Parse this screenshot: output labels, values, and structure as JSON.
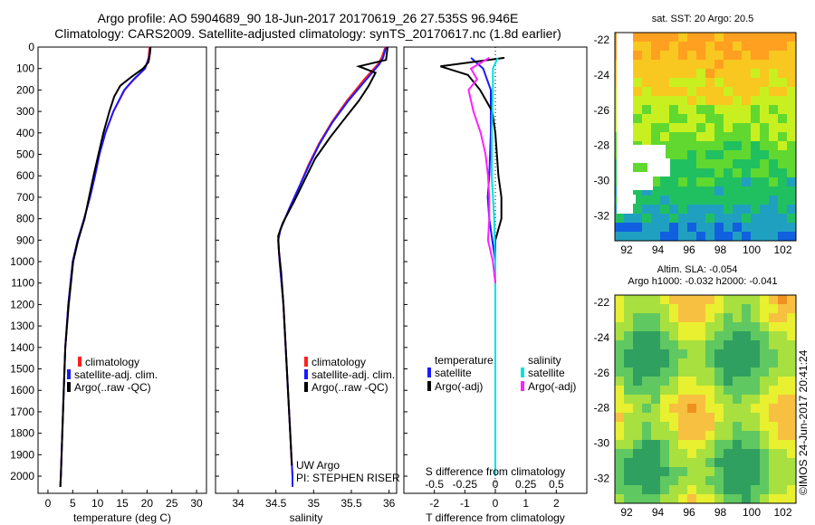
{
  "header": {
    "line1": "Argo profile: AO 5904689_90 18-Jun-2017 20170619_26 27.535S 96.946E",
    "line2": "Climatology: CARS2009. Satellite-adjusted climatology: synTS_20170617.nc (1.8d earlier)"
  },
  "colors": {
    "climatology": "#ff2020",
    "satellite": "#1a1aff",
    "argo": "#000000",
    "salinity_satellite": "#00e0e0",
    "salinity_argo": "#ff20ff"
  },
  "depth_axis": {
    "ticks": [
      0,
      100,
      200,
      300,
      400,
      500,
      600,
      700,
      800,
      900,
      1000,
      1100,
      1200,
      1300,
      1400,
      1500,
      1600,
      1700,
      1800,
      1900,
      2000
    ],
    "range": [
      0,
      2080
    ]
  },
  "panels": {
    "temperature": {
      "xlabel": "temperature (deg C)",
      "xlim": [
        -2,
        32
      ],
      "xticks": [
        0,
        5,
        10,
        15,
        20,
        25,
        30
      ],
      "legend": [
        "climatology",
        "satellite-adj. clim.",
        "Argo(..raw -QC)"
      ]
    },
    "salinity": {
      "xlabel": "salinity",
      "xlim": [
        33.7,
        36.1
      ],
      "xticks": [
        "34",
        "34.5",
        "35",
        "35.5",
        "36"
      ],
      "legend": [
        "climatology",
        "satellite-adj. clim.",
        "Argo(..raw -QC)"
      ],
      "annotation1": "UW Argo",
      "annotation2": "PI: STEPHEN RISER"
    },
    "difference": {
      "xlabel": "T difference from climatology",
      "toplabel": "S difference from climatology",
      "xlim": [
        -3,
        3
      ],
      "xticks": [
        "-2",
        "-1",
        "0",
        "1",
        "2"
      ],
      "sticks": [
        "-0.5",
        "-0.25",
        "0",
        "0.25",
        "0.5"
      ],
      "legend_t_title": "temperature",
      "legend_s_title": "salinity",
      "legend_t": [
        "satellite",
        "Argo(-adj)"
      ],
      "legend_s": [
        "satellite",
        "Argo(-adj)"
      ]
    }
  },
  "maps": {
    "sst": {
      "title": "sat. SST: 20 Argo: 20.5",
      "yticks": [
        "-22",
        "-24",
        "-26",
        "-28",
        "-30",
        "-32"
      ],
      "xticks": [
        "92",
        "94",
        "96",
        "98",
        "100",
        "102"
      ]
    },
    "sla": {
      "title1": "Altim. SLA: -0.054",
      "title2": "Argo h1000: -0.032 h2000: -0.041",
      "yticks": [
        "-22",
        "-24",
        "-26",
        "-28",
        "-30",
        "-32"
      ],
      "xticks": [
        "92",
        "94",
        "96",
        "98",
        "100",
        "102"
      ]
    },
    "credit": "©IMOS 24-Jun-2017 20:41:24"
  },
  "chart_data": [
    {
      "type": "line",
      "panel": "temperature",
      "x_unit": "deg C",
      "y_unit": "dbar (depth)",
      "series": [
        {
          "name": "climatology",
          "depth": [
            0,
            50,
            100,
            150,
            200,
            300,
            400,
            500,
            600,
            700,
            800,
            900,
            1000,
            1200,
            1400,
            1600,
            1800,
            2000,
            2050
          ],
          "values": [
            20.5,
            20.3,
            19.6,
            17.4,
            15.5,
            13.2,
            11.6,
            10.4,
            9.5,
            8.5,
            7.3,
            6.0,
            5.0,
            4.1,
            3.5,
            3.2,
            2.9,
            2.6,
            2.5
          ]
        },
        {
          "name": "satellite-adj. clim.",
          "depth": [
            0,
            50,
            100,
            150,
            200,
            300,
            400,
            500,
            600,
            700,
            800,
            900,
            1000,
            1200,
            1400,
            1600,
            1800,
            2000,
            2050
          ],
          "values": [
            20.7,
            20.4,
            19.6,
            17.3,
            15.4,
            13.2,
            11.6,
            10.4,
            9.5,
            8.5,
            7.3,
            6.0,
            5.0,
            4.1,
            3.5,
            3.2,
            2.9,
            2.6,
            2.5
          ]
        },
        {
          "name": "Argo(..raw -QC)",
          "depth": [
            0,
            30,
            70,
            100,
            140,
            180,
            230,
            300,
            400,
            500,
            600,
            700,
            800,
            900,
            1000,
            1200,
            1400,
            1600,
            1800,
            2000,
            2050
          ],
          "values": [
            20.7,
            20.6,
            20.3,
            19.2,
            16.8,
            14.6,
            13.4,
            12.4,
            11.2,
            10.2,
            9.2,
            8.3,
            7.4,
            6.1,
            5.1,
            4.2,
            3.5,
            3.2,
            2.9,
            2.6,
            2.5
          ]
        }
      ]
    },
    {
      "type": "line",
      "panel": "salinity",
      "series": [
        {
          "name": "climatology",
          "depth": [
            0,
            50,
            80,
            150,
            250,
            350,
            450,
            550,
            650,
            750,
            850,
            900,
            1000,
            1200,
            1400,
            1600,
            1800,
            2000,
            2050
          ],
          "values": [
            35.95,
            35.9,
            35.85,
            35.67,
            35.44,
            35.24,
            35.07,
            34.93,
            34.81,
            34.68,
            34.56,
            34.53,
            34.55,
            34.6,
            34.63,
            34.66,
            34.69,
            34.72,
            34.72
          ]
        },
        {
          "name": "satellite-adj. clim.",
          "depth": [
            0,
            50,
            80,
            150,
            250,
            350,
            450,
            550,
            650,
            750,
            850,
            900,
            1000,
            1200,
            1400,
            1600,
            1800,
            2000,
            2050
          ],
          "values": [
            35.96,
            35.92,
            35.87,
            35.7,
            35.46,
            35.25,
            35.08,
            34.94,
            34.81,
            34.68,
            34.56,
            34.53,
            34.55,
            34.6,
            34.63,
            34.66,
            34.69,
            34.72,
            34.72
          ]
        },
        {
          "name": "Argo(..raw -QC)",
          "depth": [
            0,
            30,
            60,
            90,
            120,
            180,
            250,
            330,
            420,
            520,
            620,
            720,
            820,
            880,
            950,
            1050,
            1200,
            1400,
            1600,
            1800,
            1950
          ],
          "values": [
            35.98,
            35.97,
            35.96,
            35.6,
            35.82,
            35.73,
            35.6,
            35.42,
            35.22,
            35.02,
            34.88,
            34.74,
            34.59,
            34.53,
            34.54,
            34.57,
            34.6,
            34.63,
            34.66,
            34.69,
            34.71
          ]
        }
      ]
    },
    {
      "type": "line",
      "panel": "difference",
      "series": [
        {
          "name": "temperature satellite",
          "depth": [
            50,
            100,
            200,
            400,
            600,
            700,
            800,
            900,
            1000,
            1200,
            1600,
            2000
          ],
          "values": [
            -0.8,
            -0.4,
            -0.15,
            -0.15,
            -0.2,
            -0.25,
            -0.2,
            -0.1,
            0,
            0,
            0,
            0
          ]
        },
        {
          "name": "temperature Argo(-adj)",
          "depth": [
            50,
            90,
            130,
            200,
            300,
            400,
            500,
            600,
            700,
            800,
            900,
            1000,
            1100,
            1200,
            1600,
            2000
          ],
          "values": [
            0.3,
            -1.8,
            -0.9,
            -0.5,
            -0.1,
            0,
            0.05,
            0.1,
            0.2,
            0.2,
            0,
            0,
            0,
            0,
            0,
            0
          ]
        },
        {
          "name": "salinity satellite",
          "depth": [
            50,
            100,
            200,
            400,
            600,
            800,
            1000,
            1200,
            1600,
            2000
          ],
          "values": [
            0.02,
            -0.02,
            -0.02,
            -0.03,
            -0.03,
            -0.01,
            0,
            0,
            0,
            0
          ]
        },
        {
          "name": "salinity Argo(-adj)",
          "depth": [
            50,
            100,
            150,
            200,
            300,
            400,
            500,
            600,
            700,
            800,
            900,
            1000,
            1100
          ],
          "values": [
            -0.05,
            -0.2,
            -0.15,
            -0.22,
            -0.18,
            -0.12,
            -0.08,
            -0.06,
            -0.05,
            -0.05,
            -0.06,
            -0.02,
            0
          ]
        }
      ]
    }
  ]
}
